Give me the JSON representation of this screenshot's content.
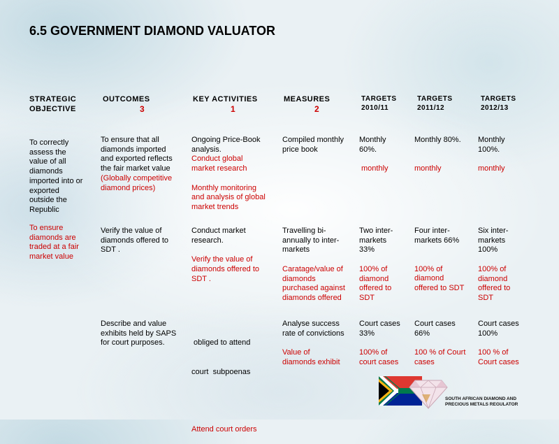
{
  "title": "6.5 GOVERNMENT DIAMOND VALUATOR",
  "headers": {
    "strategic_objective": [
      "STRATEGIC",
      "OBJECTIVE"
    ],
    "outcomes": "OUTCOMES",
    "outcomes_num": "3",
    "key_activities": "KEY ACTIVITIES",
    "key_activities_num": "1",
    "measures": "MEASURES",
    "measures_num": "2",
    "targets_1": [
      "TARGETS",
      "2010/11"
    ],
    "targets_2": [
      "TARGETS",
      "2011/12"
    ],
    "targets_3": [
      "TARGETS",
      "2012/13"
    ]
  },
  "row1": {
    "objective": [
      "To correctly",
      "assess the",
      "value of all",
      "diamonds",
      "imported into or",
      "exported",
      "outside the",
      "Republic"
    ],
    "outcome": [
      "To ensure that all",
      "diamonds imported",
      "and exported reflects",
      "the fair market value"
    ],
    "outcome_red": [
      "(Globally competitive",
      "diamond prices)"
    ],
    "activity": [
      "Ongoing Price-Book",
      "analysis."
    ],
    "activity_red": [
      "Conduct global",
      "market  research"
    ],
    "activity_red2": [
      "Monthly monitoring",
      "and analysis of global",
      "market trends"
    ],
    "measure": [
      "Compiled monthly",
      "price book"
    ],
    "t1": [
      "Monthly",
      "60%."
    ],
    "t1_red": "monthly",
    "t2": [
      "Monthly 80%."
    ],
    "t2_red": "monthly",
    "t3": [
      "Monthly",
      "100%."
    ],
    "t3_red": "monthly"
  },
  "row2": {
    "objective_red": [
      "To ensure",
      "diamonds are",
      "traded at a fair",
      "market value"
    ],
    "outcome": [
      "Verify the value of",
      "diamonds offered to",
      "SDT ."
    ],
    "activity": [
      "Conduct market",
      "research."
    ],
    "activity_red": [
      "Verify the value of",
      "diamonds offered to",
      "SDT ."
    ],
    "measure": [
      "Travelling bi-",
      "annually to inter-",
      "markets"
    ],
    "measure_red": [
      "Caratage/value of",
      "diamonds",
      "purchased against",
      "diamonds offered"
    ],
    "t1": [
      "Two inter-",
      "markets",
      "33%"
    ],
    "t1_red": [
      "100% of",
      "diamond",
      "offered to",
      "SDT"
    ],
    "t2": [
      "Four  inter-",
      "markets 66%"
    ],
    "t2_red": [
      "100% of",
      "diamond",
      "offered to SDT"
    ],
    "t3": [
      "Six inter-",
      "markets",
      "100%"
    ],
    "t3_red": [
      "100% of",
      "diamond",
      "offered to",
      "SDT"
    ]
  },
  "row3": {
    "outcome": [
      "Describe and value",
      "exhibits held by SAPS",
      "for court purposes."
    ],
    "activity": [
      " obliged to attend",
      "court  subpoenas"
    ],
    "activity_red": [
      "Attend court orders"
    ],
    "measure": [
      "Analyse success",
      "rate of convictions"
    ],
    "measure_red": [
      "Value of",
      "diamonds exhibit"
    ],
    "t1": [
      "Court cases",
      "33%"
    ],
    "t1_red": [
      "100% of",
      "court cases"
    ],
    "t2": [
      "Court cases",
      "66%"
    ],
    "t2_red": [
      "100 % of Court",
      "cases"
    ],
    "t3": [
      "Court cases",
      "100%"
    ],
    "t3_red": [
      "100 % of",
      "Court cases"
    ]
  },
  "logo": {
    "line1": "SOUTH AFRICAN DIAMOND AND",
    "line2": "PRECIOUS METALS REGULATOR"
  },
  "colors": {
    "accent_red": "#cc0000"
  }
}
